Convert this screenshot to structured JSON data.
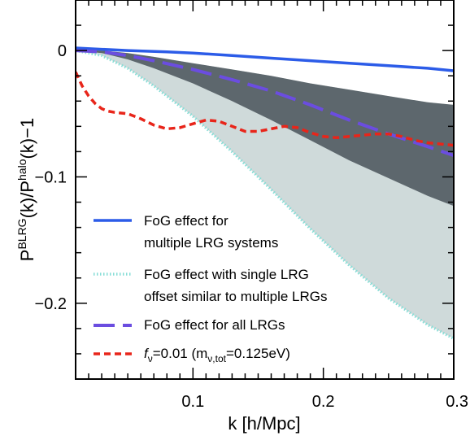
{
  "chart_data": {
    "type": "line",
    "xlabel": "k [h/Mpc]",
    "ylabel_parts": {
      "base": "P",
      "sup1": "BLRG",
      "mid": "(k)/P",
      "sup2": "halo",
      "end": "(k)−1"
    },
    "xlim": [
      0.01,
      0.3
    ],
    "ylim": [
      -0.26,
      0.04
    ],
    "xticks": [
      {
        "value": 0.1,
        "label": "0.1"
      },
      {
        "value": 0.2,
        "label": "0.2"
      },
      {
        "value": 0.3,
        "label": "0.3"
      }
    ],
    "yticks": [
      {
        "value": 0,
        "label": "0"
      },
      {
        "value": -0.1,
        "label": "−0.1"
      },
      {
        "value": -0.2,
        "label": "−0.2"
      }
    ],
    "minor_x": [
      0.02,
      0.03,
      0.04,
      0.05,
      0.06,
      0.07,
      0.08,
      0.09,
      0.11,
      0.12,
      0.13,
      0.14,
      0.15,
      0.16,
      0.17,
      0.18,
      0.19,
      0.21,
      0.22,
      0.23,
      0.24,
      0.25,
      0.26,
      0.27,
      0.28,
      0.29
    ],
    "minor_y": [
      0.02,
      -0.02,
      -0.04,
      -0.06,
      -0.08,
      -0.12,
      -0.14,
      -0.16,
      -0.18,
      -0.22,
      -0.24
    ],
    "colors": {
      "light_band": "#cfdada",
      "dark_band": "#5d676d",
      "solid": "#2c5ce8",
      "dotted": "#86ddd6",
      "dashed": "#6b4de0",
      "red": "#e8251a"
    },
    "bands": {
      "light": {
        "x": [
          0.01,
          0.03,
          0.05,
          0.07,
          0.1,
          0.13,
          0.16,
          0.19,
          0.22,
          0.25,
          0.28,
          0.3
        ],
        "upper": [
          0.0,
          0.0,
          -0.002,
          -0.005,
          -0.01,
          -0.015,
          -0.02,
          -0.026,
          -0.031,
          -0.036,
          -0.041,
          -0.043
        ],
        "lower": [
          0.0,
          -0.004,
          -0.014,
          -0.028,
          -0.052,
          -0.08,
          -0.11,
          -0.141,
          -0.17,
          -0.196,
          -0.217,
          -0.228
        ]
      },
      "dark": {
        "x": [
          0.01,
          0.03,
          0.05,
          0.07,
          0.1,
          0.13,
          0.16,
          0.19,
          0.22,
          0.25,
          0.28,
          0.3
        ],
        "upper": [
          0.0,
          0.0,
          -0.002,
          -0.005,
          -0.01,
          -0.015,
          -0.02,
          -0.026,
          -0.031,
          -0.036,
          -0.041,
          -0.043
        ],
        "lower": [
          0.0,
          -0.002,
          -0.007,
          -0.014,
          -0.026,
          -0.04,
          -0.055,
          -0.071,
          -0.087,
          -0.101,
          -0.115,
          -0.123
        ]
      }
    },
    "series": [
      {
        "key": "solid",
        "x": [
          0.01,
          0.03,
          0.05,
          0.08,
          0.1,
          0.13,
          0.16,
          0.19,
          0.22,
          0.25,
          0.28,
          0.3
        ],
        "y": [
          0.002,
          0.001,
          0.0,
          -0.001,
          -0.002,
          -0.004,
          -0.006,
          -0.008,
          -0.01,
          -0.012,
          -0.014,
          -0.016
        ]
      },
      {
        "key": "dotted",
        "x": [
          0.01,
          0.03,
          0.05,
          0.07,
          0.1,
          0.13,
          0.16,
          0.19,
          0.22,
          0.25,
          0.28,
          0.3
        ],
        "y": [
          0.0,
          -0.004,
          -0.014,
          -0.028,
          -0.052,
          -0.08,
          -0.11,
          -0.141,
          -0.17,
          -0.196,
          -0.217,
          -0.228
        ]
      },
      {
        "key": "dashed",
        "x": [
          0.01,
          0.03,
          0.05,
          0.07,
          0.1,
          0.13,
          0.16,
          0.19,
          0.22,
          0.25,
          0.28,
          0.3
        ],
        "y": [
          0.0,
          -0.001,
          -0.004,
          -0.008,
          -0.015,
          -0.023,
          -0.032,
          -0.043,
          -0.055,
          -0.066,
          -0.076,
          -0.083
        ]
      },
      {
        "key": "red",
        "x": [
          0.01,
          0.015,
          0.02,
          0.025,
          0.03,
          0.035,
          0.04,
          0.05,
          0.06,
          0.07,
          0.08,
          0.09,
          0.1,
          0.11,
          0.12,
          0.13,
          0.14,
          0.15,
          0.16,
          0.17,
          0.18,
          0.19,
          0.2,
          0.21,
          0.22,
          0.23,
          0.24,
          0.25,
          0.26,
          0.27,
          0.28,
          0.29,
          0.3
        ],
        "y": [
          -0.017,
          -0.028,
          -0.036,
          -0.042,
          -0.046,
          -0.048,
          -0.049,
          -0.05,
          -0.054,
          -0.059,
          -0.062,
          -0.061,
          -0.058,
          -0.055,
          -0.056,
          -0.06,
          -0.064,
          -0.064,
          -0.062,
          -0.06,
          -0.061,
          -0.065,
          -0.068,
          -0.069,
          -0.068,
          -0.067,
          -0.066,
          -0.066,
          -0.068,
          -0.071,
          -0.073,
          -0.074,
          -0.075
        ]
      }
    ],
    "legend": {
      "placement": "bottom-left",
      "entries": [
        {
          "key": "solid",
          "style": "solid",
          "lines": [
            "FoG effect for",
            "multiple LRG systems"
          ]
        },
        {
          "key": "dotted",
          "style": "dotted",
          "lines": [
            "FoG effect with single LRG",
            "offset similar to multiple LRGs"
          ]
        },
        {
          "key": "dashed",
          "style": "dashed",
          "lines": [
            "FoG effect for all LRGs"
          ]
        },
        {
          "key": "red",
          "style": "short-dashed",
          "label_parts": {
            "f": "f",
            "nu_sub": "ν",
            "eq": "=0.01 (m",
            "nu2_sub": "ν,tot",
            "tail": "=0.125eV)"
          }
        }
      ]
    }
  }
}
